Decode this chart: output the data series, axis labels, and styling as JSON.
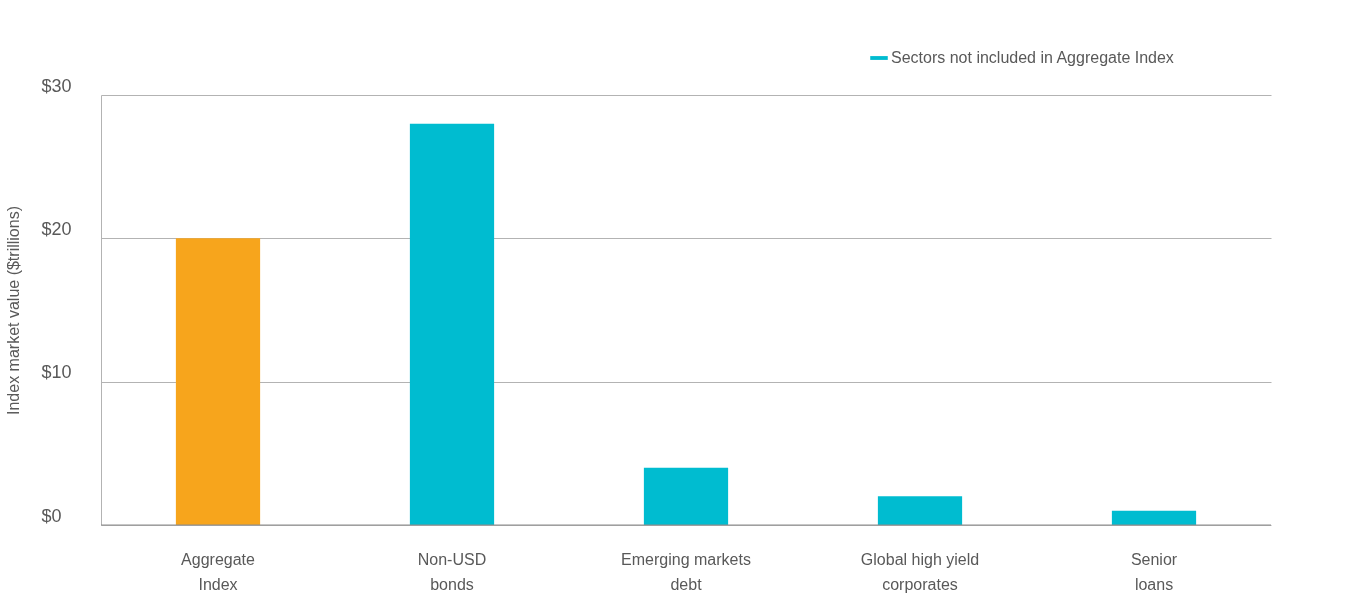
{
  "chart_data": {
    "type": "bar",
    "ylabel": "Index market value ($trillions)",
    "categories": [
      "Aggregate Index",
      "Non-USD bonds",
      "Emerging markets debt",
      "Global high yield corporates",
      "Senior loans"
    ],
    "series": [
      {
        "color": "#f7a51c",
        "values": [
          20,
          null,
          null,
          null,
          null
        ]
      },
      {
        "name": "Sectors not included in Aggregate Index",
        "color": "#00bcd0",
        "values": [
          null,
          28,
          4,
          2,
          1
        ]
      }
    ],
    "ylim": [
      0,
      30
    ],
    "yticks": [
      {
        "value": 0,
        "label": "$0"
      },
      {
        "value": 10,
        "label": "$10"
      },
      {
        "value": 20,
        "label": "$20"
      },
      {
        "value": 30,
        "label": "$30"
      }
    ],
    "grid": "y",
    "legend": "top right"
  }
}
